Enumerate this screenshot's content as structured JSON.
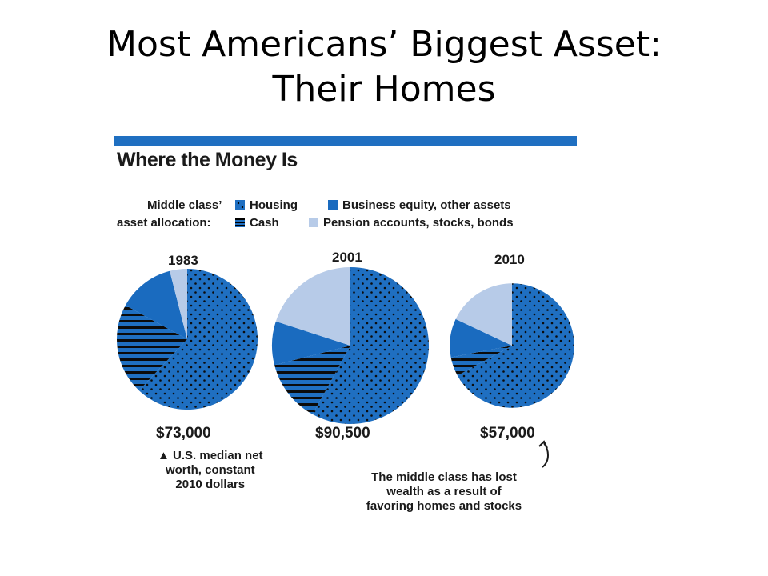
{
  "slide": {
    "title_line1": "Most Americans’ Biggest Asset:",
    "title_line2": "Their Homes"
  },
  "chart_data": {
    "type": "pie",
    "title": "Where the Money Is",
    "legend_title_line1": "Middle class’",
    "legend_title_line2": "asset allocation:",
    "legend": [
      {
        "name": "Housing",
        "pattern": "dots",
        "color": "#1f6fc1"
      },
      {
        "name": "Business equity, other assets",
        "pattern": "solid",
        "color": "#1a6bbf"
      },
      {
        "name": "Cash",
        "pattern": "stripes",
        "color": "#1f6fc1"
      },
      {
        "name": "Pension accounts, stocks, bonds",
        "pattern": "solid",
        "color": "#b7cbe8"
      }
    ],
    "series": [
      {
        "year": "1983",
        "median_net_worth": 73000,
        "label": "$73,000",
        "slices": [
          {
            "name": "Housing",
            "value": 62
          },
          {
            "name": "Cash",
            "value": 21
          },
          {
            "name": "Business equity, other assets",
            "value": 13
          },
          {
            "name": "Pension accounts, stocks, bonds",
            "value": 4
          }
        ]
      },
      {
        "year": "2001",
        "median_net_worth": 90500,
        "label": "$90,500",
        "slices": [
          {
            "name": "Housing",
            "value": 58
          },
          {
            "name": "Cash",
            "value": 13
          },
          {
            "name": "Business equity, other assets",
            "value": 9
          },
          {
            "name": "Pension accounts, stocks, bonds",
            "value": 20
          }
        ]
      },
      {
        "year": "2010",
        "median_net_worth": 57000,
        "label": "$57,000",
        "slices": [
          {
            "name": "Housing",
            "value": 67
          },
          {
            "name": "Cash",
            "value": 5
          },
          {
            "name": "Business equity, other assets",
            "value": 10
          },
          {
            "name": "Pension accounts, stocks, bonds",
            "value": 18
          }
        ]
      }
    ],
    "footnote_lines": [
      "▲ U.S. median net",
      "worth, constant",
      "2010 dollars"
    ],
    "annotation_lines": [
      "The middle class has lost",
      "wealth as a result of",
      "favoring homes and stocks"
    ]
  }
}
